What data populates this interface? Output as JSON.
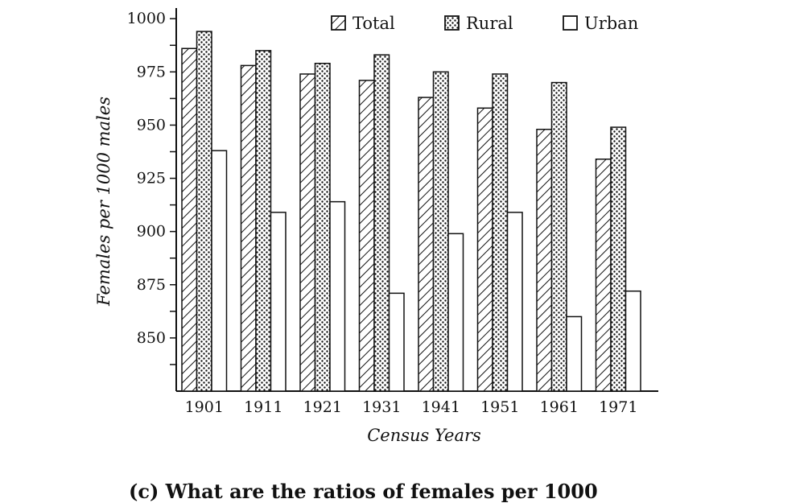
{
  "chart_data": {
    "type": "bar",
    "xlabel": "Census Years",
    "ylabel": "Females per 1000 males",
    "ylim": [
      825,
      1005
    ],
    "yticks": [
      850,
      875,
      900,
      925,
      950,
      975,
      1000
    ],
    "categories": [
      "1901",
      "1911",
      "1921",
      "1931",
      "1941",
      "1951",
      "1961",
      "1971"
    ],
    "series": [
      {
        "name": "Total",
        "pattern": "hatch",
        "values": [
          986,
          978,
          974,
          971,
          963,
          958,
          948,
          934
        ]
      },
      {
        "name": "Rural",
        "pattern": "dots",
        "values": [
          994,
          985,
          979,
          983,
          975,
          974,
          970,
          949
        ]
      },
      {
        "name": "Urban",
        "pattern": "plain",
        "values": [
          938,
          909,
          914,
          871,
          899,
          909,
          860,
          872
        ]
      }
    ],
    "legend_position": "top"
  },
  "caption": "(c)  What are the ratios of females per 1000"
}
